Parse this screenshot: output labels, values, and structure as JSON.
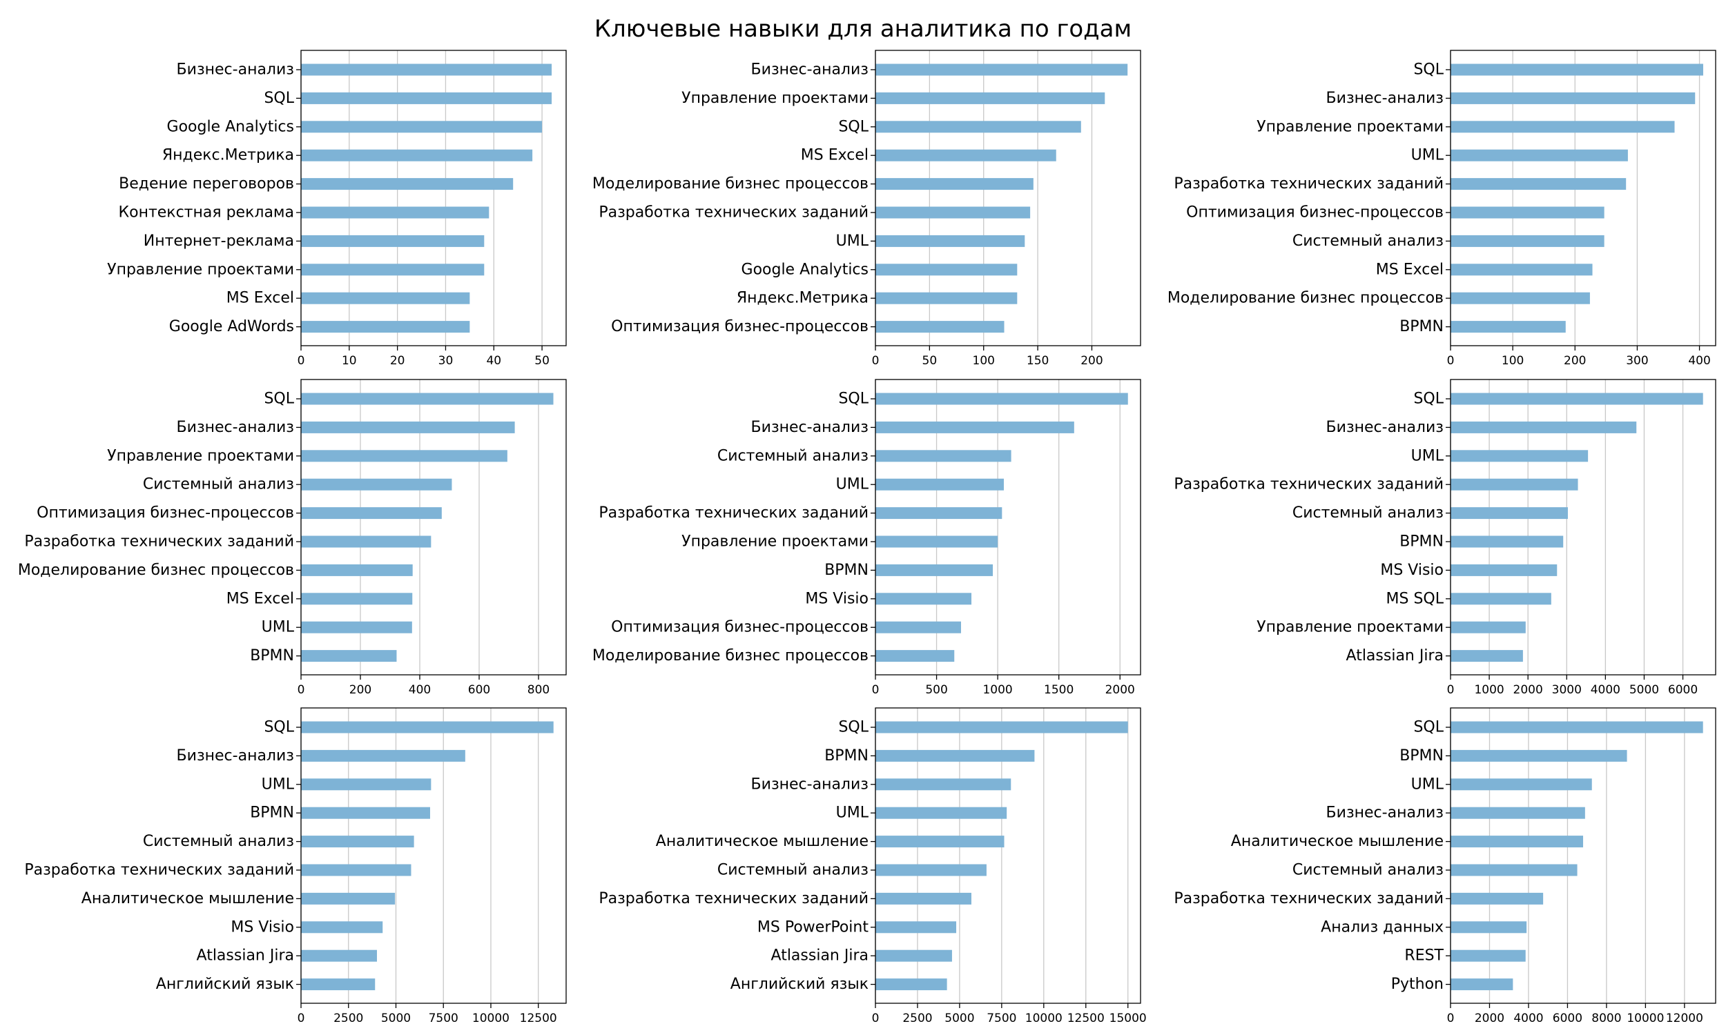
{
  "title": "Ключевые навыки для аналитика по годам",
  "colors": {
    "bar": "#7eb3d6",
    "grid": "#c8c8c8",
    "frame": "#000000"
  },
  "chart_data": [
    {
      "type": "bar",
      "orientation": "horizontal",
      "title": "",
      "xlabel": "",
      "ylabel": "",
      "grid": "x",
      "categories": [
        "Бизнес-анализ",
        "SQL",
        "Google Analytics",
        "Яндекс.Метрика",
        "Ведение переговоров",
        "Контекстная реклама",
        "Интернет-реклама",
        "Управление проектами",
        "MS Excel",
        "Google AdWords"
      ],
      "values": [
        52,
        52,
        50,
        48,
        44,
        39,
        38,
        38,
        35,
        35
      ],
      "xlim": [
        0,
        55
      ],
      "ticks": [
        0,
        10,
        20,
        30,
        40,
        50
      ]
    },
    {
      "type": "bar",
      "orientation": "horizontal",
      "title": "",
      "xlabel": "",
      "ylabel": "",
      "grid": "x",
      "categories": [
        "Бизнес-анализ",
        "Управление проектами",
        "SQL",
        "MS Excel",
        "Моделирование бизнес процессов",
        "Разработка технических заданий",
        "UML",
        "Google Analytics",
        "Яндекс.Метрика",
        "Оптимизация бизнес-процессов"
      ],
      "values": [
        233,
        212,
        190,
        167,
        146,
        143,
        138,
        131,
        131,
        119
      ],
      "xlim": [
        0,
        245
      ],
      "ticks": [
        0,
        50,
        100,
        150,
        200
      ]
    },
    {
      "type": "bar",
      "orientation": "horizontal",
      "title": "",
      "xlabel": "",
      "ylabel": "",
      "grid": "x",
      "categories": [
        "SQL",
        "Бизнес-анализ",
        "Управление проектами",
        "UML",
        "Разработка технических заданий",
        "Оптимизация бизнес-процессов",
        "Системный анализ",
        "MS Excel",
        "Моделирование бизнес процессов",
        "BPMN"
      ],
      "values": [
        406,
        393,
        360,
        285,
        282,
        247,
        247,
        228,
        224,
        185
      ],
      "xlim": [
        0,
        426
      ],
      "ticks": [
        0,
        100,
        200,
        300,
        400
      ]
    },
    {
      "type": "bar",
      "orientation": "horizontal",
      "title": "",
      "xlabel": "",
      "ylabel": "",
      "grid": "x",
      "categories": [
        "SQL",
        "Бизнес-анализ",
        "Управление проектами",
        "Системный анализ",
        "Оптимизация бизнес-процессов",
        "Разработка технических заданий",
        "Моделирование бизнес процессов",
        "MS Excel",
        "UML",
        "BPMN"
      ],
      "values": [
        850,
        720,
        695,
        508,
        474,
        438,
        376,
        375,
        374,
        322
      ],
      "xlim": [
        0,
        893
      ],
      "ticks": [
        0,
        200,
        400,
        600,
        800
      ]
    },
    {
      "type": "bar",
      "orientation": "horizontal",
      "title": "",
      "xlabel": "",
      "ylabel": "",
      "grid": "x",
      "categories": [
        "SQL",
        "Бизнес-анализ",
        "Системный анализ",
        "UML",
        "Разработка технических заданий",
        "Управление проектами",
        "BPMN",
        "MS Visio",
        "Оптимизация бизнес-процессов",
        "Моделирование бизнес процессов"
      ],
      "values": [
        2065,
        1625,
        1110,
        1050,
        1035,
        1000,
        960,
        785,
        700,
        645
      ],
      "xlim": [
        0,
        2168
      ],
      "ticks": [
        0,
        500,
        1000,
        1500,
        2000
      ]
    },
    {
      "type": "bar",
      "orientation": "horizontal",
      "title": "",
      "xlabel": "",
      "ylabel": "",
      "grid": "x",
      "categories": [
        "SQL",
        "Бизнес-анализ",
        "UML",
        "Разработка технических заданий",
        "Системный анализ",
        "BPMN",
        "MS Visio",
        "MS SQL",
        "Управление проектами",
        "Atlassian Jira"
      ],
      "values": [
        6520,
        4800,
        3550,
        3290,
        3030,
        2910,
        2750,
        2600,
        1940,
        1870
      ],
      "xlim": [
        0,
        6846
      ],
      "ticks": [
        0,
        1000,
        2000,
        3000,
        4000,
        5000,
        6000
      ]
    },
    {
      "type": "bar",
      "orientation": "horizontal",
      "title": "",
      "xlabel": "",
      "ylabel": "",
      "grid": "x",
      "categories": [
        "SQL",
        "Бизнес-анализ",
        "UML",
        "BPMN",
        "Системный анализ",
        "Разработка технических заданий",
        "Аналитическое мышление",
        "MS Visio",
        "Atlassian Jira",
        "Английский язык"
      ],
      "values": [
        13300,
        8650,
        6850,
        6800,
        5950,
        5800,
        4950,
        4300,
        4000,
        3900
      ],
      "xlim": [
        0,
        13965
      ],
      "ticks": [
        0,
        2500,
        5000,
        7500,
        10000,
        12500
      ]
    },
    {
      "type": "bar",
      "orientation": "horizontal",
      "title": "",
      "xlabel": "",
      "ylabel": "",
      "grid": "x",
      "categories": [
        "SQL",
        "BPMN",
        "Бизнес-анализ",
        "UML",
        "Аналитическое мышление",
        "Системный анализ",
        "Разработка технических заданий",
        "MS PowerPoint",
        "Atlassian Jira",
        "Английский язык"
      ],
      "values": [
        15000,
        9450,
        8050,
        7800,
        7650,
        6600,
        5700,
        4800,
        4550,
        4250
      ],
      "xlim": [
        0,
        15750
      ],
      "ticks": [
        0,
        2500,
        5000,
        7500,
        10000,
        12500,
        15000
      ]
    },
    {
      "type": "bar",
      "orientation": "horizontal",
      "title": "",
      "xlabel": "",
      "ylabel": "",
      "grid": "x",
      "categories": [
        "SQL",
        "BPMN",
        "UML",
        "Бизнес-анализ",
        "Аналитическое мышление",
        "Системный анализ",
        "Разработка технических заданий",
        "Анализ данных",
        "REST",
        "Python"
      ],
      "values": [
        12950,
        9050,
        7250,
        6900,
        6800,
        6500,
        4750,
        3900,
        3850,
        3200
      ],
      "xlim": [
        0,
        13598
      ],
      "ticks": [
        0,
        2000,
        4000,
        6000,
        8000,
        10000,
        12000
      ]
    }
  ]
}
